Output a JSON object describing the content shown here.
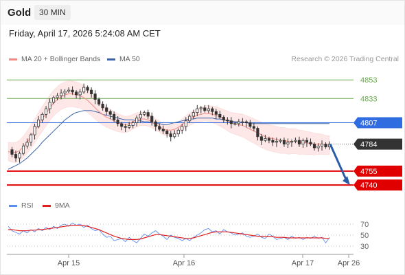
{
  "header": {
    "title": "Gold",
    "timeframe": "30 MIN"
  },
  "date_line": "Friday, April 17, 2026 5:24:08 AM CET",
  "legend": {
    "items": [
      {
        "label": "MA 20 + Bollinger Bands",
        "color": "#f28b82"
      },
      {
        "label": "MA 50",
        "color": "#3a62a8"
      }
    ],
    "credit": "Research © 2026 Trading Central"
  },
  "rsi_legend": {
    "items": [
      {
        "label": "RSI",
        "color": "#5b8def"
      },
      {
        "label": "9MA",
        "color": "#e02020"
      }
    ]
  },
  "chart_data": {
    "type": "line",
    "title": "Gold",
    "timeframe": "30 MIN",
    "x_ticks": [
      "Apr 15",
      "Apr 16",
      "Apr 17",
      "Apr 26"
    ],
    "y_range": [
      4732,
      4865
    ],
    "levels": [
      {
        "value": 4853,
        "label": "4853",
        "kind": "resistance",
        "color": "#6aa84f"
      },
      {
        "value": 4833,
        "label": "4833",
        "kind": "resistance",
        "color": "#6aa84f"
      },
      {
        "value": 4807,
        "label": "4807",
        "kind": "pivot",
        "color": "#2f6de1"
      },
      {
        "value": 4784,
        "label": "4784",
        "kind": "last",
        "color": "#333333"
      },
      {
        "value": 4755,
        "label": "4755",
        "kind": "support",
        "color": "#e00000"
      },
      {
        "value": 4740,
        "label": "4740",
        "kind": "support",
        "color": "#e00000"
      }
    ],
    "series": [
      {
        "name": "Price",
        "points": [
          4778,
          4773,
          4769,
          4774,
          4782,
          4786,
          4794,
          4803,
          4810,
          4816,
          4822,
          4829,
          4834,
          4836,
          4839,
          4841,
          4842,
          4840,
          4837,
          4840,
          4845,
          4842,
          4838,
          4832,
          4827,
          4823,
          4819,
          4816,
          4810,
          4806,
          4803,
          4802,
          4804,
          4807,
          4812,
          4816,
          4818,
          4814,
          4808,
          4803,
          4800,
          4798,
          4795,
          4792,
          4795,
          4799,
          4803,
          4809,
          4814,
          4818,
          4822,
          4823,
          4820,
          4822,
          4819,
          4816,
          4813,
          4810,
          4809,
          4806,
          4806,
          4808,
          4808,
          4807,
          4803,
          4801,
          4792,
          4788,
          4790,
          4788,
          4786,
          4787,
          4788,
          4784,
          4786,
          4787,
          4788,
          4784,
          4788,
          4786,
          4784,
          4780,
          4782,
          4784,
          4781,
          4784
        ]
      },
      {
        "name": "MA 20",
        "points": [
          4776,
          4775,
          4775,
          4777,
          4781,
          4786,
          4792,
          4798,
          4805,
          4811,
          4817,
          4823,
          4828,
          4832,
          4835,
          4837,
          4838,
          4838,
          4837,
          4836,
          4834,
          4831,
          4827,
          4823,
          4819,
          4816,
          4813,
          4811,
          4809,
          4807,
          4806,
          4805,
          4806,
          4808,
          4810,
          4811,
          4811,
          4810,
          4808,
          4805,
          4803,
          4800,
          4799,
          4799,
          4800,
          4802,
          4805,
          4808,
          4811,
          4813,
          4815,
          4816,
          4817,
          4817,
          4816,
          4815,
          4813,
          4811,
          4809,
          4807,
          4806,
          4805,
          4804,
          4802,
          4800,
          4798,
          4796,
          4794,
          4792,
          4791,
          4790,
          4789,
          4788,
          4788,
          4787,
          4787,
          4787,
          4786,
          4786,
          4785,
          4785,
          4784,
          4784,
          4784,
          4783,
          4783
        ]
      },
      {
        "name": "MA 50",
        "points": [
          4757,
          4759,
          4761,
          4763,
          4766,
          4769,
          4773,
          4777,
          4781,
          4786,
          4790,
          4794,
          4798,
          4802,
          4806,
          4810,
          4813,
          4816,
          4818,
          4819,
          4820,
          4820,
          4820,
          4819,
          4818,
          4816,
          4815,
          4814,
          4813,
          4812,
          4811,
          4810,
          4810,
          4810,
          4809,
          4809,
          4808,
          4808,
          4807,
          4806,
          4806,
          4805,
          4805,
          4806,
          4807,
          4808,
          4809,
          4810,
          4811,
          4811,
          4812,
          4812,
          4812,
          4812,
          4812,
          4811,
          4811,
          4810,
          4809,
          4809,
          4808,
          4808,
          4807,
          4807,
          4806,
          4806,
          4806,
          4806,
          4806,
          4806,
          4806,
          4806,
          4806,
          4806,
          4806,
          4806,
          4806,
          4806,
          4806,
          4806,
          4806,
          4806,
          4806,
          4806,
          4806,
          4806
        ]
      }
    ],
    "rsi": {
      "y_ticks": [
        70,
        50,
        30
      ],
      "y_range": [
        20,
        80
      ],
      "series": [
        {
          "name": "RSI",
          "points": [
            66,
            58,
            55,
            52,
            58,
            54,
            60,
            56,
            62,
            58,
            64,
            60,
            66,
            62,
            68,
            70,
            66,
            72,
            68,
            70,
            64,
            68,
            62,
            58,
            60,
            52,
            46,
            48,
            40,
            42,
            44,
            38,
            46,
            40,
            36,
            44,
            52,
            48,
            54,
            58,
            52,
            48,
            42,
            50,
            46,
            44,
            40,
            44,
            40,
            46,
            50,
            54,
            60,
            62,
            56,
            58,
            52,
            60,
            56,
            54,
            50,
            52,
            54,
            48,
            46,
            48,
            52,
            46,
            44,
            52,
            48,
            42,
            44,
            46,
            42,
            48,
            44,
            46,
            42,
            46,
            44,
            48,
            44,
            46,
            36,
            46
          ]
        },
        {
          "name": "9MA",
          "points": [
            60,
            60,
            59,
            58,
            58,
            58,
            59,
            59,
            60,
            60,
            61,
            62,
            63,
            64,
            65,
            66,
            67,
            68,
            68,
            68,
            67,
            66,
            64,
            62,
            60,
            57,
            54,
            51,
            48,
            46,
            44,
            43,
            42,
            42,
            42,
            43,
            45,
            47,
            49,
            51,
            51,
            50,
            49,
            48,
            47,
            46,
            45,
            44,
            44,
            45,
            47,
            49,
            51,
            53,
            55,
            56,
            56,
            56,
            56,
            55,
            54,
            53,
            52,
            51,
            50,
            49,
            48,
            48,
            47,
            47,
            47,
            46,
            46,
            46,
            45,
            45,
            45,
            45,
            45,
            45,
            45,
            45,
            45,
            45,
            44,
            44
          ]
        }
      ]
    },
    "forecast": {
      "from": 4784,
      "to": 4740,
      "direction": "down"
    }
  }
}
